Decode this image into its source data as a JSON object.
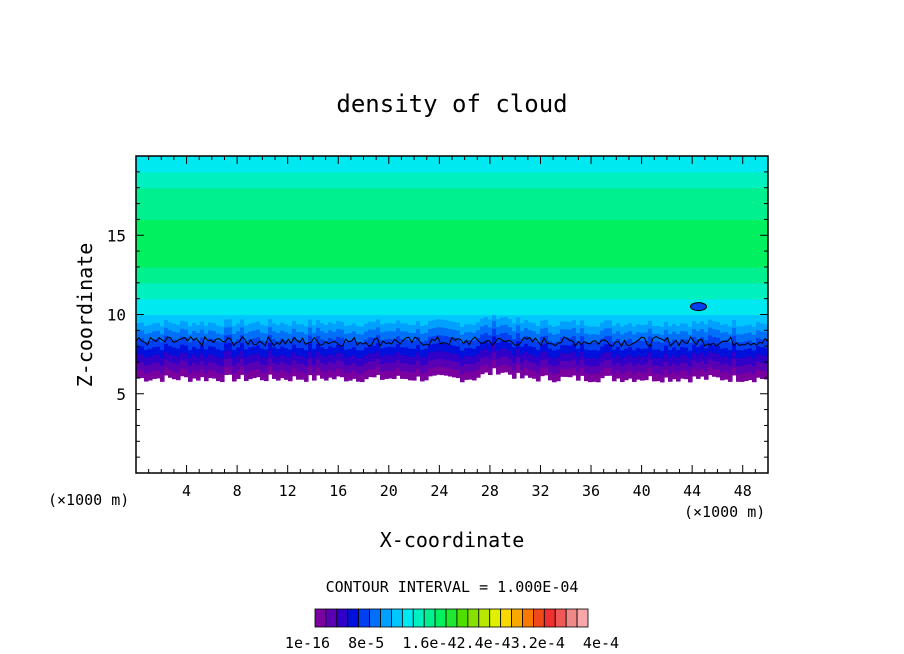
{
  "chart_data": {
    "type": "heatmap",
    "title": "density of cloud",
    "xlabel": "X-coordinate",
    "ylabel": "Z-coordinate",
    "x_unit_left": "(×1000 m)",
    "x_unit_right": "(×1000 m)",
    "xlim": [
      0,
      50
    ],
    "ylim": [
      0,
      20
    ],
    "x_ticks": [
      4,
      8,
      12,
      16,
      20,
      24,
      28,
      32,
      36,
      40,
      44,
      48
    ],
    "y_ticks": [
      5,
      10,
      15
    ],
    "contour_interval_label": "CONTOUR INTERVAL = 1.000E-04",
    "colorbar_labels": [
      "1e-16",
      "8e-5",
      "1.6e-4",
      "2.4e-4",
      "3.2e-4",
      "4e-4"
    ],
    "colorbar_label_text": "1e-16  8e-5  1.6e-42.4e-43.2e-4  4e-4",
    "colorbar_colors": [
      "#7a00a0",
      "#5a00b4",
      "#3000c8",
      "#0010dc",
      "#0040f0",
      "#0070f8",
      "#00a0ff",
      "#00c8ff",
      "#00e8f0",
      "#00f0c0",
      "#00f090",
      "#00f060",
      "#20e830",
      "#50e000",
      "#88e000",
      "#b8e800",
      "#e0f000",
      "#f8d800",
      "#f8a800",
      "#f87800",
      "#f04818",
      "#f03030",
      "#f05858",
      "#f08888",
      "#f8a8a8"
    ],
    "profile": {
      "z": [
        6.0,
        6.5,
        7.0,
        7.5,
        8.0,
        8.5,
        9.0,
        9.5,
        10.0,
        11.0,
        12.0,
        13.0,
        14.0,
        15.0,
        16.0,
        17.0,
        18.0,
        19.0,
        20.0
      ],
      "level": [
        0,
        1,
        2,
        3,
        4,
        5,
        6,
        7,
        8,
        9,
        10,
        11,
        11,
        11,
        10,
        10,
        9,
        8,
        8
      ]
    },
    "cloud_base_z": 6.2,
    "cloud_top_z": 20,
    "contour_z": 8.3
  }
}
